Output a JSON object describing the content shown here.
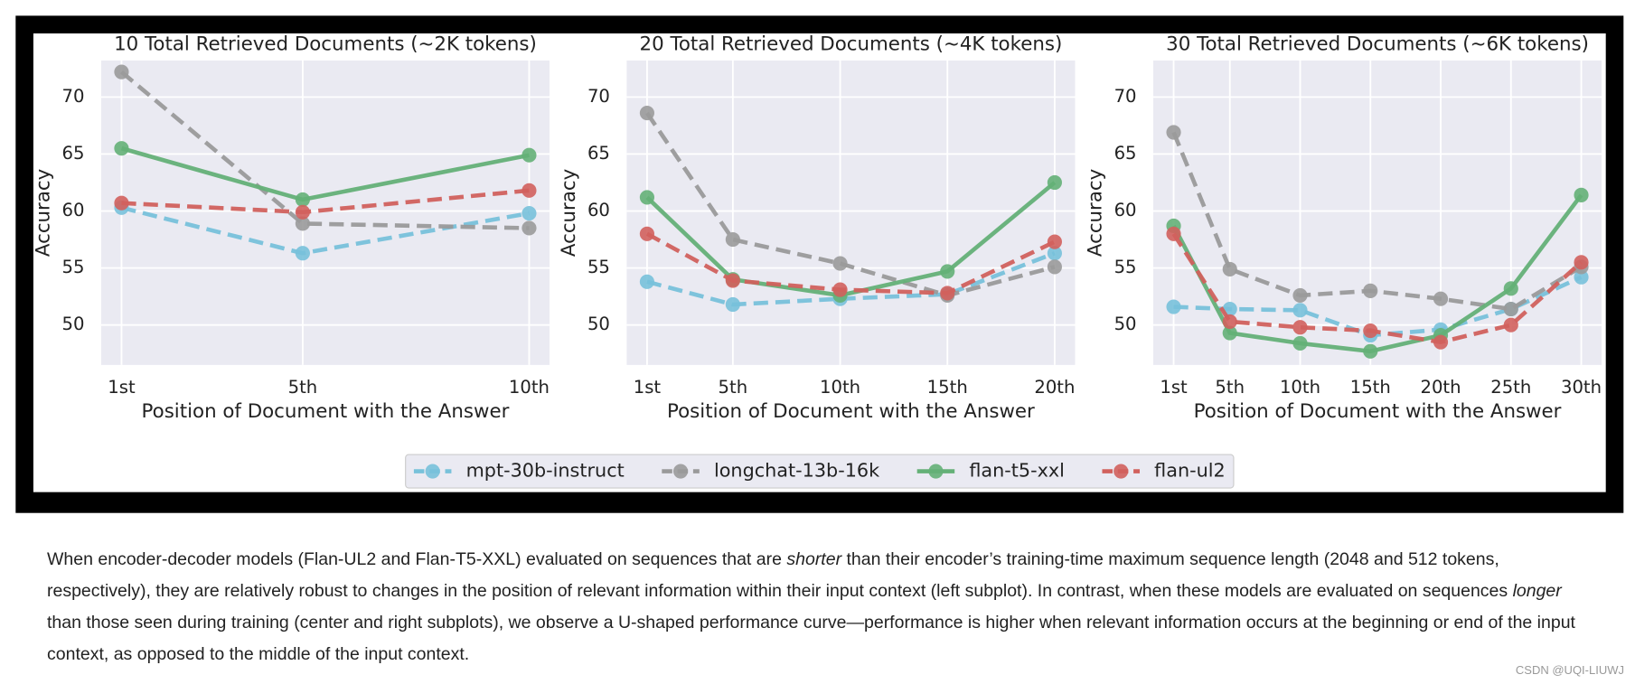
{
  "chart_data": [
    {
      "type": "line",
      "title": "10 Total Retrieved Documents (~2K tokens)",
      "xlabel": "Position of Document with the Answer",
      "ylabel": "Accuracy",
      "x": [
        1,
        5,
        10
      ],
      "xlim": [
        0.55,
        10.45
      ],
      "xticks": [
        {
          "value": 1,
          "label": "1st"
        },
        {
          "value": 5,
          "label": "5th"
        },
        {
          "value": 10,
          "label": "10th"
        }
      ],
      "ylim": [
        46.5,
        73.2
      ],
      "yticks": [
        50,
        55,
        60,
        65,
        70
      ],
      "grid": true,
      "series": [
        {
          "name": "mpt-30b-instruct",
          "color": "#78c1da",
          "linestyle": "dashed",
          "values": [
            60.3,
            56.3,
            59.8
          ]
        },
        {
          "name": "longchat-13b-16k",
          "color": "#9a9a9a",
          "linestyle": "dashed",
          "values": [
            72.2,
            58.9,
            58.5
          ]
        },
        {
          "name": "flan-t5-xxl",
          "color": "#64b077",
          "linestyle": "solid",
          "values": [
            65.5,
            61.0,
            64.9
          ]
        },
        {
          "name": "flan-ul2",
          "color": "#d1615d",
          "linestyle": "dashed",
          "values": [
            60.7,
            59.9,
            61.8
          ]
        }
      ]
    },
    {
      "type": "line",
      "title": "20 Total Retrieved Documents (~4K tokens)",
      "xlabel": "Position of Document with the Answer",
      "ylabel": "Accuracy",
      "x": [
        1,
        5,
        10,
        15,
        20
      ],
      "xlim": [
        0.05,
        20.95
      ],
      "xticks": [
        {
          "value": 1,
          "label": "1st"
        },
        {
          "value": 5,
          "label": "5th"
        },
        {
          "value": 10,
          "label": "10th"
        },
        {
          "value": 15,
          "label": "15th"
        },
        {
          "value": 20,
          "label": "20th"
        }
      ],
      "ylim": [
        46.5,
        73.2
      ],
      "yticks": [
        50,
        55,
        60,
        65,
        70
      ],
      "grid": true,
      "series": [
        {
          "name": "mpt-30b-instruct",
          "color": "#78c1da",
          "linestyle": "dashed",
          "values": [
            53.8,
            51.8,
            52.3,
            52.7,
            56.3
          ]
        },
        {
          "name": "longchat-13b-16k",
          "color": "#9a9a9a",
          "linestyle": "dashed",
          "values": [
            68.6,
            57.5,
            55.4,
            52.6,
            55.1
          ]
        },
        {
          "name": "flan-t5-xxl",
          "color": "#64b077",
          "linestyle": "solid",
          "values": [
            61.2,
            54.0,
            52.6,
            54.7,
            62.5
          ]
        },
        {
          "name": "flan-ul2",
          "color": "#d1615d",
          "linestyle": "dashed",
          "values": [
            58.0,
            53.9,
            53.1,
            52.8,
            57.3
          ]
        }
      ]
    },
    {
      "type": "line",
      "title": "30 Total Retrieved Documents (~6K tokens)",
      "xlabel": "Position of Document with the Answer",
      "ylabel": "Accuracy",
      "x": [
        1,
        5,
        10,
        15,
        20,
        25,
        30
      ],
      "xlim": [
        -0.45,
        31.45
      ],
      "xticks": [
        {
          "value": 1,
          "label": "1st"
        },
        {
          "value": 5,
          "label": "5th"
        },
        {
          "value": 10,
          "label": "10th"
        },
        {
          "value": 15,
          "label": "15th"
        },
        {
          "value": 20,
          "label": "20th"
        },
        {
          "value": 25,
          "label": "25th"
        },
        {
          "value": 30,
          "label": "30th"
        }
      ],
      "ylim": [
        46.5,
        73.2
      ],
      "yticks": [
        50,
        55,
        60,
        65,
        70
      ],
      "grid": true,
      "series": [
        {
          "name": "mpt-30b-instruct",
          "color": "#78c1da",
          "linestyle": "dashed",
          "values": [
            51.6,
            51.4,
            51.3,
            49.1,
            49.6,
            51.4,
            54.2
          ]
        },
        {
          "name": "longchat-13b-16k",
          "color": "#9a9a9a",
          "linestyle": "dashed",
          "values": [
            66.9,
            54.9,
            52.6,
            53.0,
            52.3,
            51.4,
            55.1
          ]
        },
        {
          "name": "flan-t5-xxl",
          "color": "#64b077",
          "linestyle": "solid",
          "values": [
            58.7,
            49.3,
            48.4,
            47.7,
            49.1,
            53.2,
            61.4
          ]
        },
        {
          "name": "flan-ul2",
          "color": "#d1615d",
          "linestyle": "dashed",
          "values": [
            58.0,
            50.3,
            49.8,
            49.5,
            48.5,
            50.0,
            55.5
          ]
        }
      ]
    }
  ],
  "caption": [
    {
      "text": "When encoder-decoder models (Flan-UL2 and Flan-T5-XXL) evaluated on sequences that are "
    },
    {
      "text": "shorter",
      "italic": true
    },
    {
      "text": " than their encoder’s training-time maximum sequence length (2048 and 512 tokens, respectively), they are relatively robust to changes in the position of relevant information within their input context (left subplot). In contrast, when these models are evaluated on sequences "
    },
    {
      "text": "longer",
      "italic": true
    },
    {
      "text": " than those seen during training (center and right subplots), we observe a U-shaped performance curve—performance is higher when relevant information occurs at the beginning or end of the input context, as opposed to the middle of the input context."
    }
  ],
  "watermark": "CSDN @UQI-LIUWJ"
}
